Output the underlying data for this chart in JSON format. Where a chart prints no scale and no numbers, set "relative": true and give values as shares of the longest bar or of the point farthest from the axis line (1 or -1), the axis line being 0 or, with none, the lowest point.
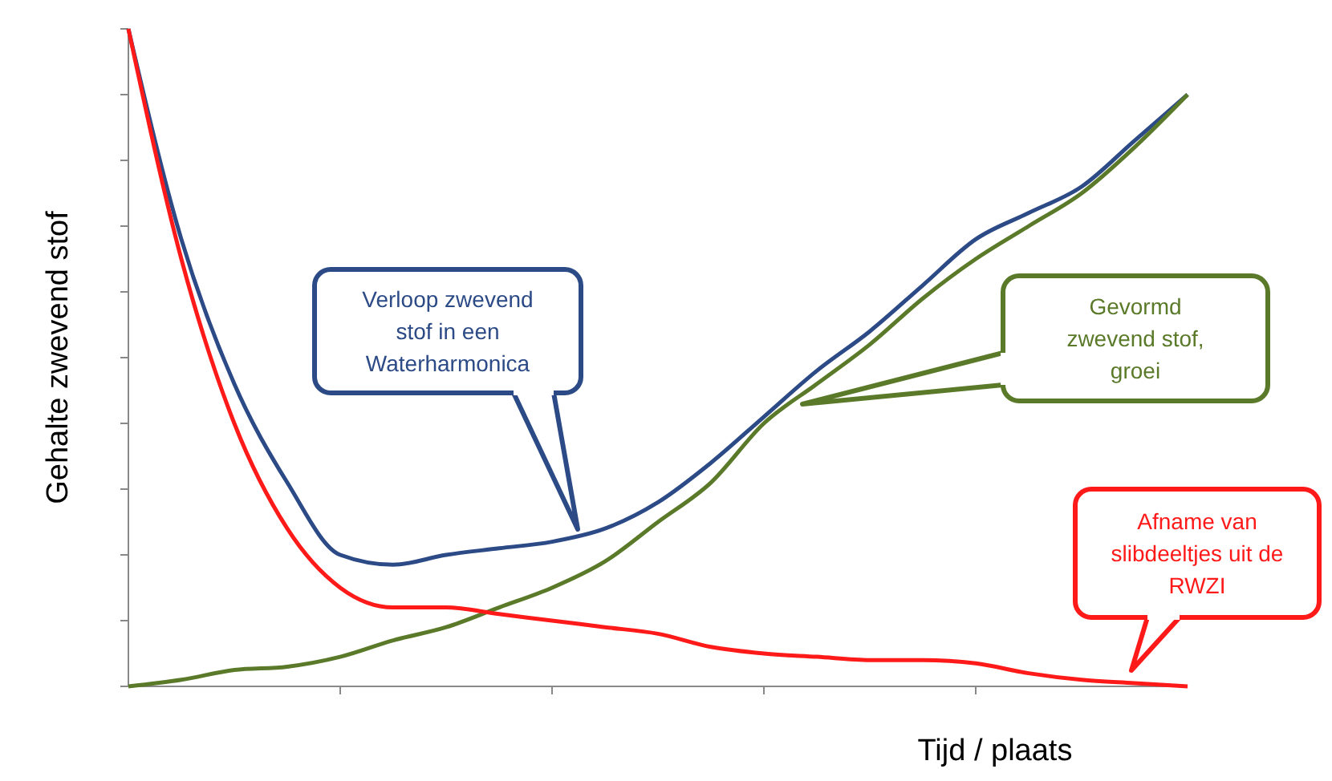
{
  "chart_data": {
    "type": "line",
    "relative": true,
    "xlabel": "Tijd / plaats",
    "ylabel": "Gehalte zwevend stof",
    "marker": "none",
    "line_style": "solid",
    "categories": [
      null,
      null,
      null,
      null,
      null,
      null,
      null,
      null,
      null,
      null,
      null,
      null,
      null,
      null,
      null,
      null,
      null,
      null,
      null,
      null,
      null
    ],
    "series": [
      {
        "color": "#2b4a86",
        "values": [
          1,
          0.68,
          0.46,
          0.31,
          0.2,
          0.185,
          0.2,
          0.21,
          0.22,
          0.24,
          0.28,
          0.34,
          0.41,
          0.48,
          0.54,
          0.61,
          0.68,
          0.72,
          0.76,
          0.83,
          0.9
        ]
      },
      {
        "color": "#5a7a2a",
        "values": [
          0,
          0.01,
          0.025,
          0.03,
          0.045,
          0.07,
          0.09,
          0.12,
          0.15,
          0.19,
          0.25,
          0.31,
          0.4,
          0.46,
          0.52,
          0.59,
          0.65,
          0.7,
          0.75,
          0.82,
          0.9
        ]
      },
      {
        "color": "#ff1a1a",
        "values": [
          1,
          0.65,
          0.4,
          0.24,
          0.15,
          0.12,
          0.12,
          0.11,
          0.1,
          0.09,
          0.08,
          0.06,
          0.05,
          0.045,
          0.04,
          0.04,
          0.035,
          0.02,
          0.01,
          0.005,
          0
        ]
      }
    ],
    "annotations": [
      "Verloop zwevend\nstof in een\nWaterharmonica",
      "Gevormd\nzwevend stof,\ngroei",
      "Afname van\nslibdeeltjes uit de\nRWZI"
    ]
  }
}
